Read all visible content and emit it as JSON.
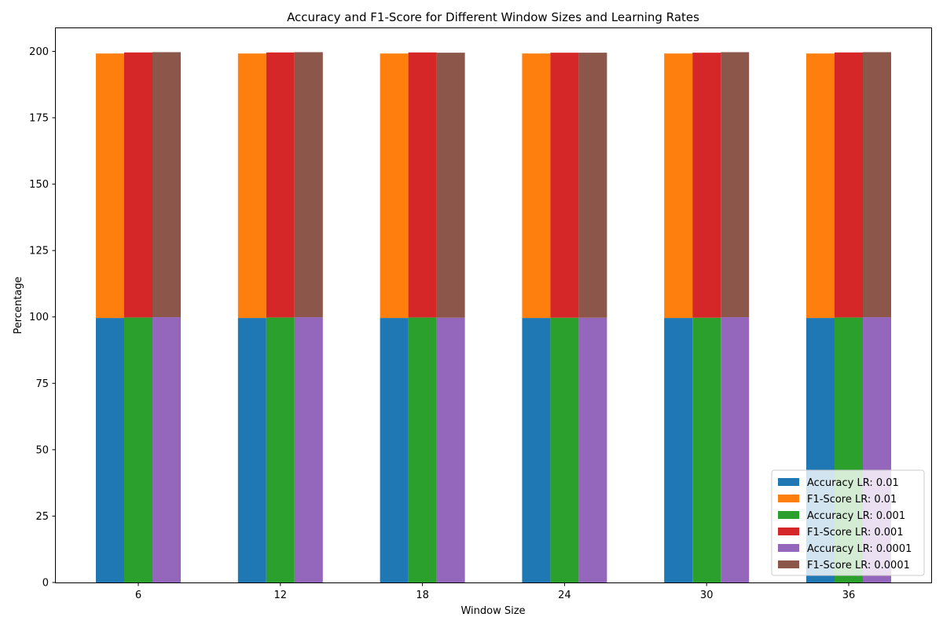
{
  "chart_data": {
    "type": "bar",
    "stacked": true,
    "title": "Accuracy and F1-Score for Different Window Sizes and Learning Rates",
    "xlabel": "Window Size",
    "ylabel": "Percentage",
    "categories": [
      "6",
      "12",
      "18",
      "24",
      "30",
      "36"
    ],
    "ylim": [
      0,
      209
    ],
    "yticks": [
      0,
      25,
      50,
      75,
      100,
      125,
      150,
      175,
      200
    ],
    "grid": false,
    "legend_position": "lower right",
    "groups": [
      {
        "learning_rate": "0.01",
        "accuracy": {
          "name": "Accuracy LR: 0.01",
          "color": "#1f77b4",
          "values": [
            99.6,
            99.6,
            99.6,
            99.6,
            99.6,
            99.6
          ]
        },
        "f1": {
          "name": "F1-Score LR: 0.01",
          "color": "#ff7f0e",
          "values": [
            99.6,
            99.6,
            99.6,
            99.6,
            99.6,
            99.6
          ]
        }
      },
      {
        "learning_rate": "0.001",
        "accuracy": {
          "name": "Accuracy LR: 0.001",
          "color": "#2ca02c",
          "values": [
            99.8,
            99.8,
            99.8,
            99.7,
            99.7,
            99.8
          ]
        },
        "f1": {
          "name": "F1-Score LR: 0.001",
          "color": "#d62728",
          "values": [
            99.8,
            99.8,
            99.8,
            99.8,
            99.8,
            99.8
          ]
        }
      },
      {
        "learning_rate": "0.0001",
        "accuracy": {
          "name": "Accuracy LR: 0.0001",
          "color": "#9467bd",
          "values": [
            99.9,
            99.9,
            99.7,
            99.7,
            99.9,
            99.9
          ]
        },
        "f1": {
          "name": "F1-Score LR: 0.0001",
          "color": "#8c564b",
          "values": [
            99.8,
            99.8,
            99.8,
            99.8,
            99.8,
            99.8
          ]
        }
      }
    ],
    "legend": [
      {
        "label": "Accuracy LR: 0.01",
        "color": "#1f77b4"
      },
      {
        "label": "F1-Score LR: 0.01",
        "color": "#ff7f0e"
      },
      {
        "label": "Accuracy LR: 0.001",
        "color": "#2ca02c"
      },
      {
        "label": "F1-Score LR: 0.001",
        "color": "#d62728"
      },
      {
        "label": "Accuracy LR: 0.0001",
        "color": "#9467bd"
      },
      {
        "label": "F1-Score LR: 0.0001",
        "color": "#8c564b"
      }
    ]
  }
}
